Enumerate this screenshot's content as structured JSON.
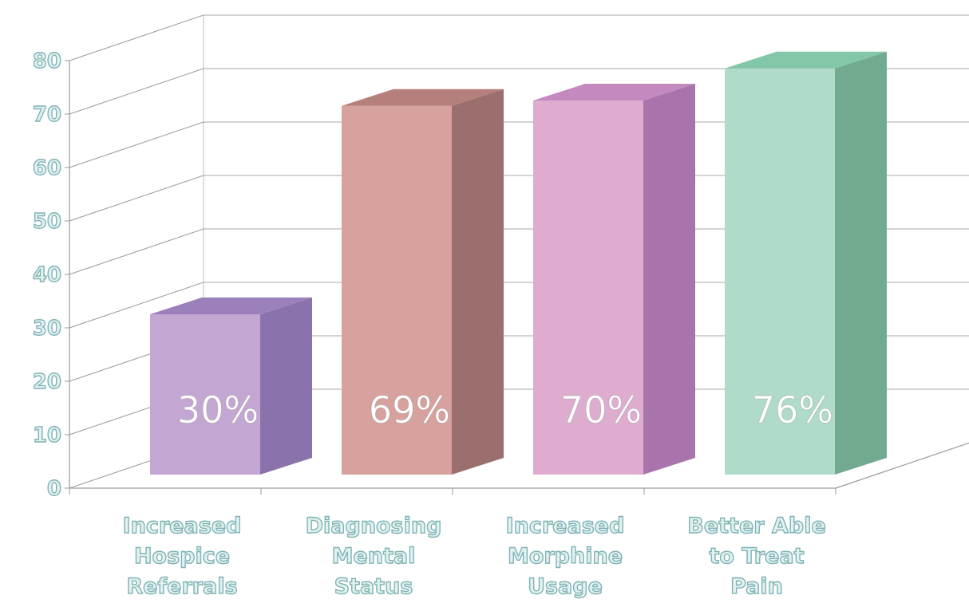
{
  "chart_data": {
    "type": "bar",
    "style": "3d-column",
    "categories": [
      [
        "Increased",
        "Hospice",
        "Referrals"
      ],
      [
        "Diagnosing",
        "Mental",
        "Status"
      ],
      [
        "Increased",
        "Morphine",
        "Usage"
      ],
      [
        "Better Able",
        "to Treat",
        "Pain"
      ]
    ],
    "values": [
      30,
      69,
      70,
      76
    ],
    "data_labels": [
      "30%",
      "69%",
      "70%",
      "76%"
    ],
    "ylim": [
      0,
      80
    ],
    "yticks": [
      "0",
      "10",
      "20",
      "30",
      "40",
      "50",
      "60",
      "70",
      "80"
    ],
    "grid": true,
    "colors": [
      {
        "front": "#c4a6d2",
        "side": "#8a73ac",
        "top": "#9b80bb"
      },
      {
        "front": "#d7a19e",
        "side": "#9a6f6e",
        "top": "#b57f7c"
      },
      {
        "front": "#ddaccf",
        "side": "#a974ab",
        "top": "#c48abf"
      },
      {
        "front": "#afdbc8",
        "side": "#72aa8f",
        "top": "#82c8a8"
      }
    ]
  }
}
